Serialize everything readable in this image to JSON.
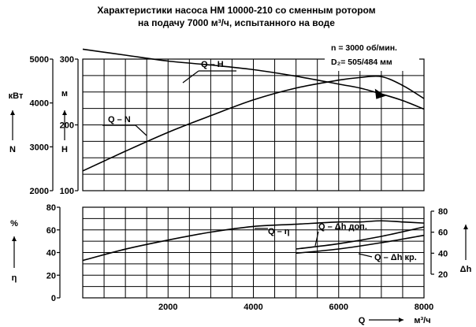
{
  "chart_data": {
    "type": "line",
    "title_lines": [
      "Характеристики насоса НМ 10000-210 со сменным ротором",
      "на подачу 7000 м³/ч, испытанного на воде"
    ],
    "annotation_n": "n = 3000 об/мин.",
    "annotation_d2": "D₂= 505/484 мм",
    "x_axis": {
      "label": "Q",
      "unit": "м³/ч",
      "range": [
        0,
        8000
      ],
      "ticks": [
        2000,
        4000,
        6000,
        8000
      ],
      "grid_step": 500
    },
    "y_axes": [
      {
        "id": "N",
        "label": "N",
        "unit": "кВт",
        "range": [
          2000,
          5000
        ],
        "ticks": [
          2000,
          3000,
          4000,
          5000
        ],
        "panel": "top",
        "side": "left"
      },
      {
        "id": "H",
        "label": "H",
        "unit": "м",
        "range": [
          100,
          300
        ],
        "ticks": [
          100,
          200,
          300
        ],
        "panel": "top",
        "side": "left"
      },
      {
        "id": "eta",
        "label": "η",
        "unit": "%",
        "range": [
          0,
          80
        ],
        "ticks": [
          0,
          20,
          40,
          60,
          80
        ],
        "panel": "bottom",
        "side": "left"
      },
      {
        "id": "dh",
        "label": "Δh",
        "unit": "",
        "range": [
          20,
          80
        ],
        "ticks": [
          20,
          40,
          60,
          80
        ],
        "panel": "bottom",
        "side": "right"
      }
    ],
    "series": [
      {
        "name": "Q – H",
        "axis": "H",
        "x": [
          0,
          1000,
          2000,
          3000,
          4000,
          5000,
          6000,
          6500,
          7000,
          7500,
          8000
        ],
        "y": [
          315,
          306,
          297,
          291,
          284,
          274,
          262,
          256,
          247,
          237,
          224
        ]
      },
      {
        "name": "Q – N",
        "axis": "N",
        "x": [
          0,
          1000,
          2000,
          3000,
          4000,
          5000,
          6000,
          6500,
          7000,
          7500,
          8000
        ],
        "y": [
          2450,
          2900,
          3330,
          3710,
          4070,
          4340,
          4520,
          4580,
          4600,
          4400,
          4100
        ]
      },
      {
        "name": "Q – η",
        "axis": "eta",
        "x": [
          0,
          1000,
          2000,
          3000,
          4000,
          5000,
          6000,
          6500,
          7000,
          7500,
          8000
        ],
        "y": [
          33,
          43,
          51,
          58,
          63,
          65,
          67,
          67,
          68,
          67,
          66
        ]
      },
      {
        "name": "Q – Δh доп.",
        "axis": "dh",
        "x": [
          5000,
          6000,
          7000,
          8000
        ],
        "y": [
          44,
          49,
          56,
          65
        ]
      },
      {
        "name": "Q – Δh кр.",
        "axis": "dh",
        "x": [
          5000,
          6000,
          7000,
          8000
        ],
        "y": [
          40,
          44,
          50,
          57
        ]
      }
    ],
    "curve_labels": {
      "qh": "Q – H",
      "qn": "Q – N",
      "qeta": "Q – η",
      "dh_dop": "Q – Δh доп.",
      "dh_kr": "Q – Δh кр."
    },
    "grid": true
  }
}
